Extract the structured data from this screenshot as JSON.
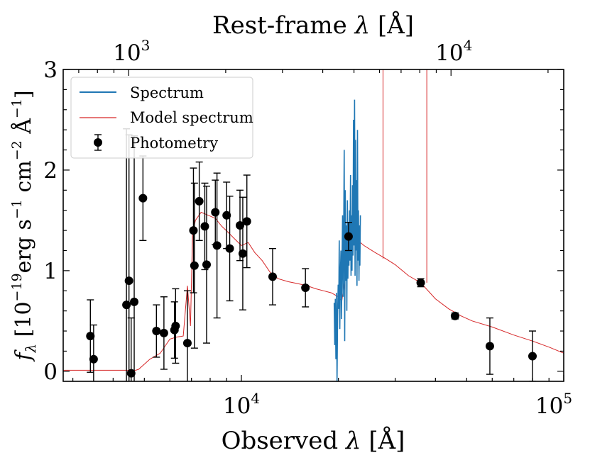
{
  "chart_data": {
    "type": "scatter",
    "x_scale": "log",
    "xlim": [
      2800,
      100000
    ],
    "ylim": [
      -0.1,
      3.0
    ],
    "xlabel": {
      "main": "Observed ",
      "var": "λ",
      "unit": " [Å]"
    },
    "ylabel": {
      "f": "f",
      "sub": "λ",
      "open": " [10",
      "e1": "−19",
      "erg": "erg s",
      "e2": "−1",
      "cm": " cm",
      "e3": "−2",
      "A": " Å",
      "e4": "−1",
      "close": "]"
    },
    "top_axis_label": {
      "main": "Rest-frame ",
      "var": "λ",
      "unit": " [Å]"
    },
    "top_axis_redshift_factor": 4.47,
    "y_ticks": [
      {
        "value": 0,
        "label": "0"
      },
      {
        "value": 1,
        "label": "1"
      },
      {
        "value": 2,
        "label": "2"
      },
      {
        "value": 3,
        "label": "3"
      }
    ],
    "x_ticks": [
      {
        "value": 10000,
        "base": "10",
        "exp": "4"
      },
      {
        "value": 100000,
        "base": "10",
        "exp": "5"
      }
    ],
    "top_ticks": [
      {
        "value": 1000,
        "base": "10",
        "exp": "3"
      },
      {
        "value": 10000,
        "base": "10",
        "exp": "4"
      }
    ],
    "legend": {
      "position": "upper-left",
      "entries": [
        {
          "label": "Spectrum",
          "kind": "line",
          "color": "#1f77b4"
        },
        {
          "label": "Model spectrum",
          "kind": "line",
          "color": "#d62728"
        },
        {
          "label": "Photometry",
          "kind": "errorbar",
          "color": "#000000"
        }
      ]
    },
    "colors": {
      "spectrum": "#1f77b4",
      "model": "#d62728",
      "photometry": "#000000"
    },
    "photometry": [
      {
        "x": 3400,
        "y": 0.35,
        "err": 0.36
      },
      {
        "x": 3480,
        "y": 0.12,
        "err": 0.34
      },
      {
        "x": 4400,
        "y": 0.66,
        "err": 1.75
      },
      {
        "x": 4480,
        "y": 0.9,
        "err": 1.45
      },
      {
        "x": 4550,
        "y": -0.02,
        "err": 0.55
      },
      {
        "x": 4650,
        "y": 0.69,
        "err": 1.65
      },
      {
        "x": 4950,
        "y": 1.72,
        "err": 0.42
      },
      {
        "x": 5450,
        "y": 0.4,
        "err": 0.26
      },
      {
        "x": 5750,
        "y": 0.38,
        "err": 0.36
      },
      {
        "x": 6200,
        "y": 0.41,
        "err": 0.28
      },
      {
        "x": 6250,
        "y": 0.45,
        "err": 0.37
      },
      {
        "x": 6800,
        "y": 0.28,
        "err": 0.52
      },
      {
        "x": 7100,
        "y": 1.4,
        "err": 0.62
      },
      {
        "x": 7150,
        "y": 1.05,
        "err": 0.82
      },
      {
        "x": 7400,
        "y": 1.69,
        "err": 0.39
      },
      {
        "x": 7700,
        "y": 1.44,
        "err": 0.43
      },
      {
        "x": 7800,
        "y": 1.06,
        "err": 0.78
      },
      {
        "x": 8300,
        "y": 1.58,
        "err": 0.32
      },
      {
        "x": 8400,
        "y": 1.25,
        "err": 0.72
      },
      {
        "x": 9000,
        "y": 1.55,
        "err": 0.33
      },
      {
        "x": 9200,
        "y": 1.22,
        "err": 0.52
      },
      {
        "x": 9900,
        "y": 1.45,
        "err": 0.35
      },
      {
        "x": 10100,
        "y": 1.17,
        "err": 0.56
      },
      {
        "x": 10400,
        "y": 1.49,
        "err": 0.46
      },
      {
        "x": 12500,
        "y": 0.94,
        "err": 0.28
      },
      {
        "x": 15800,
        "y": 0.83,
        "err": 0.19
      },
      {
        "x": 21500,
        "y": 1.34,
        "err": 0.14
      },
      {
        "x": 36000,
        "y": 0.88,
        "err": 0.04
      },
      {
        "x": 46000,
        "y": 0.55,
        "err": 0.03
      },
      {
        "x": 59000,
        "y": 0.25,
        "err": 0.28
      },
      {
        "x": 80000,
        "y": 0.15,
        "err": 0.25
      }
    ],
    "model_spectrum": [
      [
        2800,
        0.01
      ],
      [
        4700,
        0.01
      ],
      [
        4800,
        0.02
      ],
      [
        5200,
        0.12
      ],
      [
        5600,
        0.18
      ],
      [
        6000,
        0.32
      ],
      [
        6300,
        0.34
      ],
      [
        6600,
        0.35
      ],
      [
        6800,
        0.85
      ],
      [
        6950,
        0.45
      ],
      [
        7050,
        1.35
      ],
      [
        7200,
        1.5
      ],
      [
        7500,
        1.58
      ],
      [
        7900,
        1.55
      ],
      [
        8300,
        1.52
      ],
      [
        8700,
        1.44
      ],
      [
        9100,
        1.38
      ],
      [
        9500,
        1.32
      ],
      [
        10000,
        1.25
      ],
      [
        10500,
        1.28
      ],
      [
        11000,
        1.18
      ],
      [
        11600,
        1.1
      ],
      [
        12300,
        0.98
      ],
      [
        13000,
        0.92
      ],
      [
        14000,
        0.89
      ],
      [
        15000,
        0.87
      ],
      [
        16000,
        0.85
      ],
      [
        17000,
        0.82
      ],
      [
        18000,
        0.8
      ],
      [
        19000,
        0.78
      ],
      [
        20000,
        0.74
      ],
      [
        20500,
        0.7
      ],
      [
        21000,
        0.95
      ],
      [
        21500,
        1.3
      ],
      [
        22000,
        1.4
      ],
      [
        23000,
        1.3
      ],
      [
        24000,
        1.25
      ],
      [
        26000,
        1.18
      ],
      [
        28000,
        1.12
      ],
      [
        30000,
        1.06
      ],
      [
        33000,
        0.95
      ],
      [
        36000,
        0.88
      ],
      [
        40000,
        0.72
      ],
      [
        44000,
        0.62
      ],
      [
        48000,
        0.55
      ],
      [
        52000,
        0.5
      ],
      [
        60000,
        0.44
      ],
      [
        70000,
        0.36
      ],
      [
        80000,
        0.3
      ],
      [
        90000,
        0.24
      ],
      [
        100000,
        0.18
      ]
    ],
    "model_emission_lines": [
      {
        "x": 27500,
        "peak": 3.0
      },
      {
        "x": 37600,
        "peak": 3.0
      }
    ],
    "spectrum": [
      [
        19400,
        0.68
      ],
      [
        19480,
        0.26
      ],
      [
        19560,
        0.72
      ],
      [
        19640,
        0.12
      ],
      [
        19720,
        0.78
      ],
      [
        19800,
        -0.1
      ],
      [
        19880,
        0.55
      ],
      [
        19960,
        0.86
      ],
      [
        20040,
        0.62
      ],
      [
        20120,
        1.3
      ],
      [
        20200,
        0.42
      ],
      [
        20280,
        0.96
      ],
      [
        20360,
        1.2
      ],
      [
        20440,
        0.52
      ],
      [
        20520,
        1.05
      ],
      [
        20600,
        1.55
      ],
      [
        20680,
        0.74
      ],
      [
        20760,
        1.3
      ],
      [
        20840,
        2.2
      ],
      [
        20920,
        0.3
      ],
      [
        21000,
        1.8
      ],
      [
        21080,
        0.9
      ],
      [
        21160,
        1.45
      ],
      [
        21240,
        0.6
      ],
      [
        21320,
        1.7
      ],
      [
        21400,
        0.92
      ],
      [
        21480,
        1.4
      ],
      [
        21560,
        1.05
      ],
      [
        21640,
        1.6
      ],
      [
        21720,
        1.1
      ],
      [
        21800,
        1.95
      ],
      [
        21880,
        0.95
      ],
      [
        21960,
        1.55
      ],
      [
        22040,
        1.0
      ],
      [
        22120,
        1.85
      ],
      [
        22200,
        1.15
      ],
      [
        22280,
        2.5
      ],
      [
        22360,
        1.25
      ],
      [
        22440,
        2.7
      ],
      [
        22520,
        0.95
      ],
      [
        22600,
        2.3
      ],
      [
        22680,
        1.2
      ],
      [
        22760,
        1.9
      ],
      [
        22840,
        0.85
      ],
      [
        22920,
        2.4
      ],
      [
        23000,
        1.1
      ],
      [
        23080,
        1.6
      ],
      [
        23160,
        0.9
      ],
      [
        23240,
        1.45
      ],
      [
        23320,
        1.05
      ],
      [
        23400,
        1.55
      ]
    ]
  }
}
